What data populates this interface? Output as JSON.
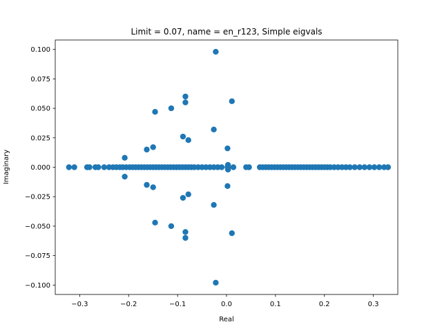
{
  "chart_data": {
    "type": "scatter",
    "title": "Limit = 0.07, name = en_r123, Simple eigvals",
    "xlabel": "Real",
    "ylabel": "Imaginary",
    "xlim": [
      -0.35,
      0.35
    ],
    "ylim": [
      -0.108,
      0.108
    ],
    "xticks": [
      -0.3,
      -0.2,
      -0.1,
      0.0,
      0.1,
      0.2,
      0.3
    ],
    "xtick_labels": [
      "−0.3",
      "−0.2",
      "−0.1",
      "0.0",
      "0.1",
      "0.2",
      "0.3"
    ],
    "yticks": [
      -0.1,
      -0.075,
      -0.05,
      -0.025,
      0.0,
      0.025,
      0.05,
      0.075,
      0.1
    ],
    "ytick_labels": [
      "−0.100",
      "−0.075",
      "−0.050",
      "−0.025",
      "0.000",
      "0.025",
      "0.050",
      "0.075",
      "0.100"
    ],
    "grid": false,
    "marker_color": "#1f77b4",
    "points": [
      [
        -0.022,
        0.098
      ],
      [
        -0.022,
        -0.098
      ],
      [
        -0.084,
        0.06
      ],
      [
        -0.084,
        -0.06
      ],
      [
        -0.084,
        0.055
      ],
      [
        -0.084,
        -0.055
      ],
      [
        0.011,
        0.056
      ],
      [
        0.011,
        -0.056
      ],
      [
        -0.113,
        0.05
      ],
      [
        -0.113,
        -0.05
      ],
      [
        -0.146,
        0.047
      ],
      [
        -0.146,
        -0.047
      ],
      [
        -0.026,
        0.032
      ],
      [
        -0.026,
        -0.032
      ],
      [
        -0.089,
        0.026
      ],
      [
        -0.089,
        -0.026
      ],
      [
        -0.078,
        0.023
      ],
      [
        -0.078,
        -0.023
      ],
      [
        -0.15,
        0.017
      ],
      [
        -0.15,
        -0.017
      ],
      [
        -0.163,
        0.015
      ],
      [
        -0.163,
        -0.015
      ],
      [
        0.002,
        0.016
      ],
      [
        0.002,
        -0.016
      ],
      [
        -0.208,
        0.008
      ],
      [
        -0.208,
        -0.008
      ],
      [
        0.003,
        0.002
      ],
      [
        0.003,
        -0.002
      ],
      [
        0.003,
        0.0
      ],
      [
        -0.322,
        0.0
      ],
      [
        -0.311,
        0.0
      ],
      [
        -0.285,
        0.0
      ],
      [
        -0.28,
        0.0
      ],
      [
        -0.268,
        0.0
      ],
      [
        -0.262,
        0.0
      ],
      [
        -0.25,
        0.0
      ],
      [
        -0.24,
        0.0
      ],
      [
        -0.232,
        0.0
      ],
      [
        -0.225,
        0.0
      ],
      [
        -0.218,
        0.0
      ],
      [
        -0.212,
        0.0
      ],
      [
        -0.205,
        0.0
      ],
      [
        -0.198,
        0.0
      ],
      [
        -0.192,
        0.0
      ],
      [
        -0.186,
        0.0
      ],
      [
        -0.18,
        0.0
      ],
      [
        -0.174,
        0.0
      ],
      [
        -0.168,
        0.0
      ],
      [
        -0.162,
        0.0
      ],
      [
        -0.156,
        0.0
      ],
      [
        -0.15,
        0.0
      ],
      [
        -0.144,
        0.0
      ],
      [
        -0.138,
        0.0
      ],
      [
        -0.132,
        0.0
      ],
      [
        -0.126,
        0.0
      ],
      [
        -0.12,
        0.0
      ],
      [
        -0.114,
        0.0
      ],
      [
        -0.108,
        0.0
      ],
      [
        -0.102,
        0.0
      ],
      [
        -0.096,
        0.0
      ],
      [
        -0.09,
        0.0
      ],
      [
        -0.084,
        0.0
      ],
      [
        -0.078,
        0.0
      ],
      [
        -0.072,
        0.0
      ],
      [
        -0.066,
        0.0
      ],
      [
        -0.058,
        0.0
      ],
      [
        -0.05,
        0.0
      ],
      [
        -0.042,
        0.0
      ],
      [
        -0.034,
        0.0
      ],
      [
        -0.026,
        0.0
      ],
      [
        -0.018,
        0.0
      ],
      [
        -0.01,
        0.0
      ],
      [
        0.002,
        0.0
      ],
      [
        0.014,
        0.0
      ],
      [
        0.04,
        0.0
      ],
      [
        0.046,
        0.0
      ],
      [
        0.068,
        0.0
      ],
      [
        0.074,
        0.0
      ],
      [
        0.08,
        0.0
      ],
      [
        0.086,
        0.0
      ],
      [
        0.092,
        0.0
      ],
      [
        0.098,
        0.0
      ],
      [
        0.104,
        0.0
      ],
      [
        0.11,
        0.0
      ],
      [
        0.116,
        0.0
      ],
      [
        0.122,
        0.0
      ],
      [
        0.128,
        0.0
      ],
      [
        0.134,
        0.0
      ],
      [
        0.14,
        0.0
      ],
      [
        0.146,
        0.0
      ],
      [
        0.152,
        0.0
      ],
      [
        0.158,
        0.0
      ],
      [
        0.164,
        0.0
      ],
      [
        0.17,
        0.0
      ],
      [
        0.176,
        0.0
      ],
      [
        0.182,
        0.0
      ],
      [
        0.188,
        0.0
      ],
      [
        0.194,
        0.0
      ],
      [
        0.2,
        0.0
      ],
      [
        0.206,
        0.0
      ],
      [
        0.212,
        0.0
      ],
      [
        0.22,
        0.0
      ],
      [
        0.228,
        0.0
      ],
      [
        0.236,
        0.0
      ],
      [
        0.244,
        0.0
      ],
      [
        0.252,
        0.0
      ],
      [
        0.262,
        0.0
      ],
      [
        0.272,
        0.0
      ],
      [
        0.282,
        0.0
      ],
      [
        0.292,
        0.0
      ],
      [
        0.302,
        0.0
      ],
      [
        0.312,
        0.0
      ],
      [
        0.322,
        0.0
      ],
      [
        0.33,
        0.0
      ]
    ]
  }
}
